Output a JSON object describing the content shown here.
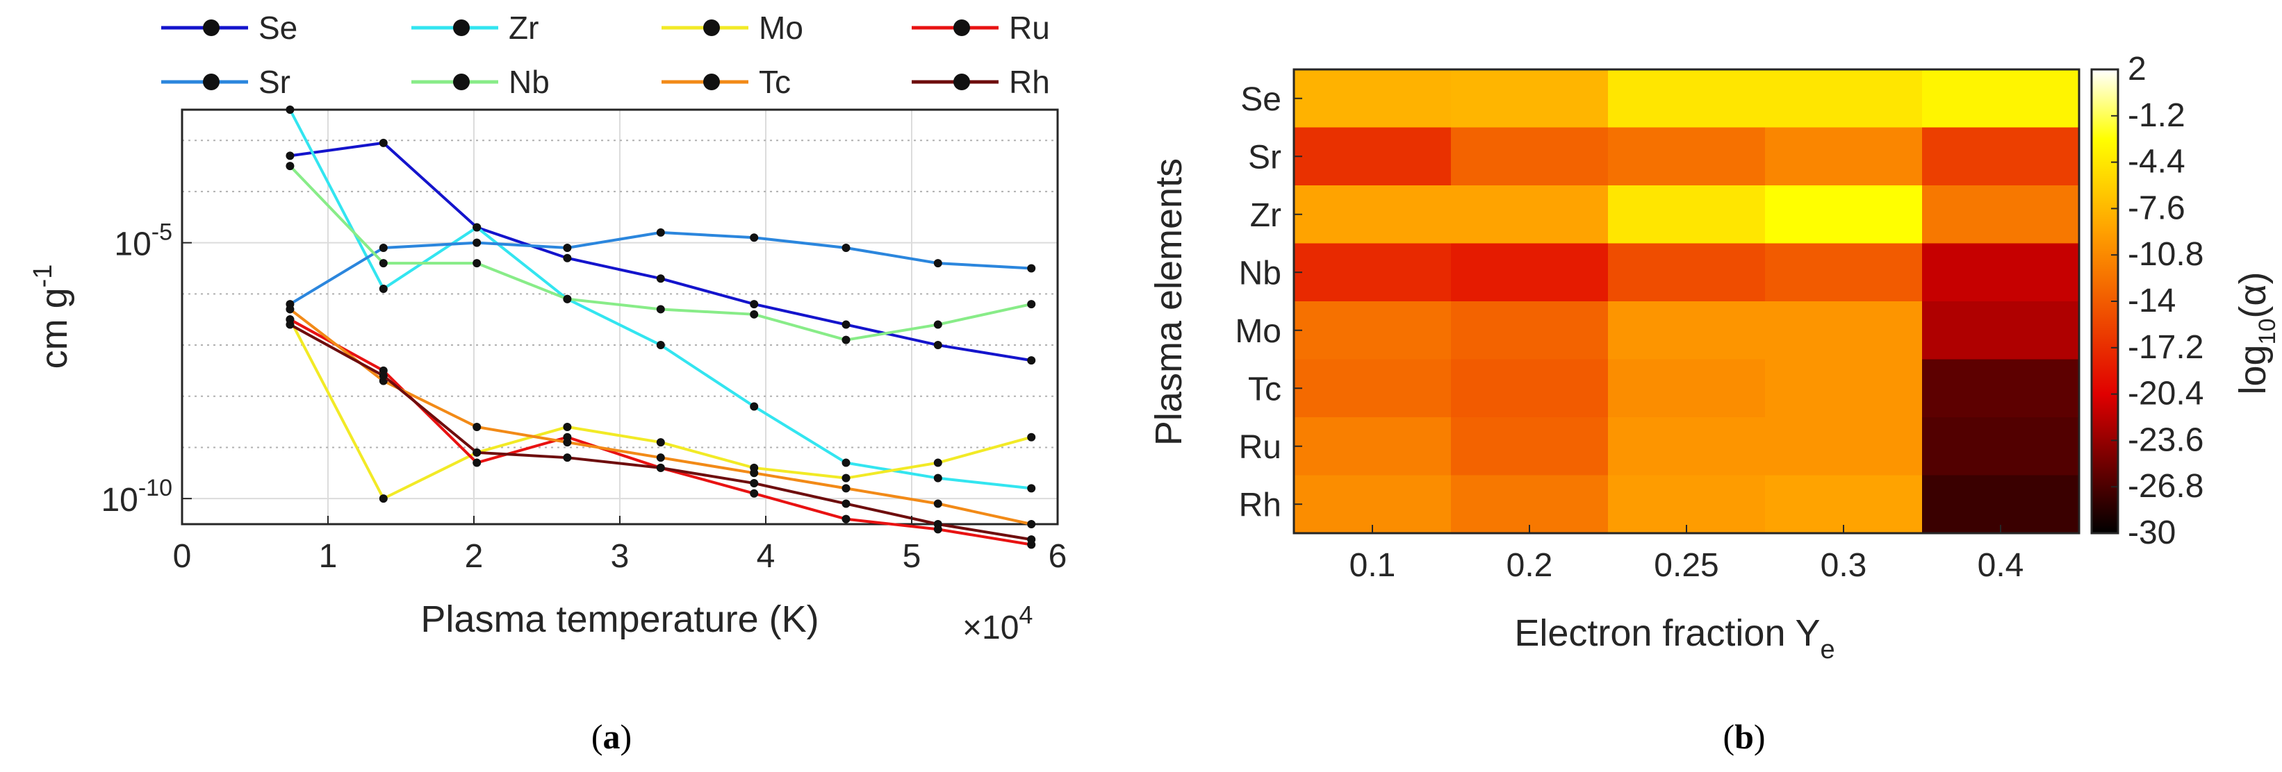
{
  "chart_data": [
    {
      "type": "line",
      "panel_label": "a",
      "xlabel": "Plasma temperature (K)",
      "x_multiplier": "×10",
      "x_multiplier_exp": "4",
      "ylabel": "cm g",
      "ylabel_exp": "-1",
      "y_scale": "log",
      "xlim": [
        0,
        6
      ],
      "ylim_log10": [
        -10.5,
        -2.4
      ],
      "x_ticks": [
        "0",
        "1",
        "2",
        "3",
        "4",
        "5",
        "6"
      ],
      "y_ticks": [
        {
          "base": "10",
          "exp": "-5",
          "log10": -5
        },
        {
          "base": "10",
          "exp": "-10",
          "log10": -10
        }
      ],
      "grid": true,
      "x": [
        0.74,
        1.38,
        2.02,
        2.64,
        3.28,
        3.92,
        4.55,
        5.18,
        5.82
      ],
      "series": [
        {
          "name": "Se",
          "color": "#1414cc",
          "log10_values": [
            -3.3,
            -3.05,
            -4.7,
            -5.3,
            -5.7,
            -6.2,
            -6.6,
            -7.0,
            -7.3
          ]
        },
        {
          "name": "Zr",
          "color": "#33e5f0",
          "log10_values": [
            -2.4,
            -5.9,
            -4.7,
            -6.1,
            -7.0,
            -8.2,
            -9.3,
            -9.6,
            -9.8
          ]
        },
        {
          "name": "Mo",
          "color": "#f2ea26",
          "log10_values": [
            -6.5,
            -10.0,
            -9.1,
            -8.6,
            -8.9,
            -9.4,
            -9.6,
            -9.3,
            -8.8
          ]
        },
        {
          "name": "Ru",
          "color": "#e81212",
          "log10_values": [
            -6.5,
            -7.5,
            -9.3,
            -8.8,
            -9.4,
            -9.9,
            -10.4,
            -10.6,
            -10.9
          ]
        },
        {
          "name": "Sr",
          "color": "#2b86dd",
          "log10_values": [
            -6.2,
            -5.1,
            -5.0,
            -5.1,
            -4.8,
            -4.9,
            -5.1,
            -5.4,
            -5.5
          ]
        },
        {
          "name": "Nb",
          "color": "#88ec88",
          "log10_values": [
            -3.5,
            -5.4,
            -5.4,
            -6.1,
            -6.3,
            -6.4,
            -6.9,
            -6.6,
            -6.2
          ]
        },
        {
          "name": "Tc",
          "color": "#f28a17",
          "log10_values": [
            -6.3,
            -7.7,
            -8.6,
            -8.9,
            -9.2,
            -9.5,
            -9.8,
            -10.1,
            -10.5
          ]
        },
        {
          "name": "Rh",
          "color": "#6e0d0d",
          "log10_values": [
            -6.6,
            -7.6,
            -9.1,
            -9.2,
            -9.4,
            -9.7,
            -10.1,
            -10.5,
            -10.8
          ]
        }
      ]
    },
    {
      "type": "heatmap",
      "panel_label": "b",
      "xlabel": "Electron fraction Y",
      "xlabel_sub": "e",
      "ylabel": "Plasma elements",
      "x_categories": [
        "0.1",
        "0.2",
        "0.25",
        "0.3",
        "0.4"
      ],
      "y_categories": [
        "Se",
        "Sr",
        "Zr",
        "Nb",
        "Mo",
        "Tc",
        "Ru",
        "Rh"
      ],
      "values_log10_alpha": [
        [
          -8.0,
          -7.8,
          -4.5,
          -4.5,
          -3.5
        ],
        [
          -17.0,
          -13.5,
          -12.5,
          -11.0,
          -16.0
        ],
        [
          -9.0,
          -9.0,
          -4.5,
          -2.8,
          -12.0
        ],
        [
          -17.5,
          -18.5,
          -15.0,
          -14.0,
          -21.5
        ],
        [
          -12.5,
          -13.5,
          -10.0,
          -10.0,
          -22.5
        ],
        [
          -13.0,
          -14.0,
          -10.5,
          -10.0,
          -26.0
        ],
        [
          -11.5,
          -13.5,
          -10.0,
          -10.0,
          -26.5
        ],
        [
          -10.5,
          -12.0,
          -9.5,
          -9.0,
          -27.5
        ]
      ],
      "colorbar": {
        "label": "log",
        "label_sub": "10",
        "label_suffix": "(α)",
        "range": [
          -30,
          2
        ],
        "ticks": [
          "2",
          "-1.2",
          "-4.4",
          "-7.6",
          "-10.8",
          "-14",
          "-17.2",
          "-20.4",
          "-23.6",
          "-26.8",
          "-30"
        ]
      }
    }
  ],
  "captions": {
    "a": "a",
    "b": "b"
  }
}
